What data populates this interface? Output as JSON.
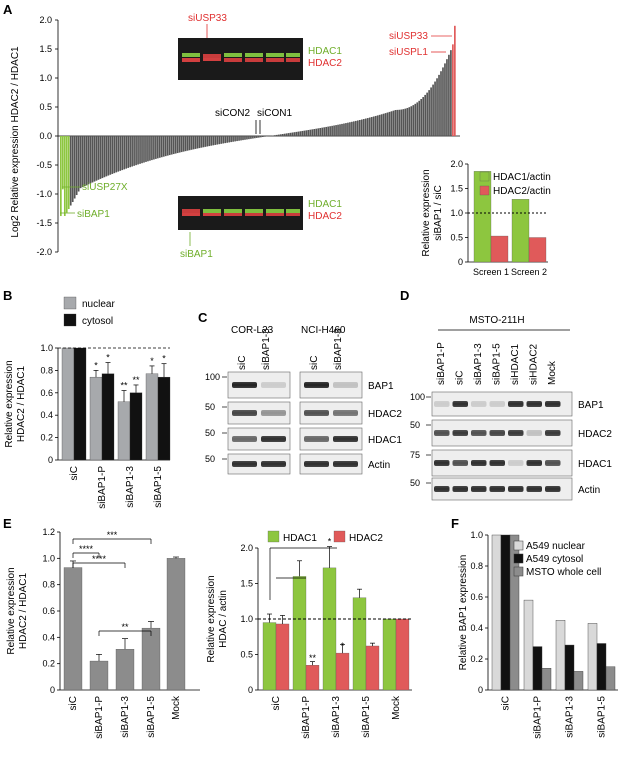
{
  "panels": {
    "A": "A",
    "B": "B",
    "C": "C",
    "D": "D",
    "E": "E",
    "F": "F"
  },
  "colors": {
    "green": "#8dc63f",
    "red": "#e05a5a",
    "grey": "#a7a9ac",
    "black": "#111111",
    "lightgrey": "#d9d9d9",
    "midgrey": "#8c8c8c"
  },
  "panelA": {
    "ylabel": "Log2 Relative expression HDAC2 / HDAC1",
    "yticks": [
      "2.0",
      "1.5",
      "1.0",
      "0.5",
      "0.0",
      "-0.5",
      "-1.0",
      "-1.5",
      "-2.0"
    ],
    "labels": {
      "siUSP33_blot": "siUSP33",
      "siUSP33": "siUSP33",
      "siUSPL1": "siUSPL1",
      "siCON2": "siCON2",
      "siCON1": "siCON1",
      "siUSP27X": "siUSP27X",
      "siBAP1": "siBAP1",
      "siBAP1_blot": "siBAP1",
      "hdac1_top": "HDAC1",
      "hdac2_top": "HDAC2",
      "hdac1_bot": "HDAC1",
      "hdac2_bot": "HDAC2"
    }
  },
  "chart_data": [
    {
      "id": "A_inset",
      "type": "bar",
      "ylabel": "Relative expression siBAP1 / siC",
      "categories": [
        "Screen 1",
        "Screen 2"
      ],
      "series": [
        {
          "name": "HDAC1/actin",
          "values": [
            1.85,
            1.28
          ]
        },
        {
          "name": "HDAC2/actin",
          "values": [
            0.53,
            0.5
          ]
        }
      ],
      "ylim": [
        0,
        2
      ],
      "yticks": [
        "0",
        "0.5",
        "1.0",
        "1.5",
        "2.0"
      ],
      "reference_line": 1.0
    },
    {
      "id": "B",
      "type": "bar",
      "ylabel": "Relative expression HDAC2 / HDAC1",
      "categories": [
        "siC",
        "siBAP1-P",
        "siBAP1-3",
        "siBAP1-5"
      ],
      "series": [
        {
          "name": "nuclear",
          "values": [
            1.0,
            0.74,
            0.52,
            0.77
          ]
        },
        {
          "name": "cytosol",
          "values": [
            1.0,
            0.77,
            0.6,
            0.74
          ]
        }
      ],
      "errors": [
        [
          0,
          0.06,
          0.1,
          0.07
        ],
        [
          0,
          0.1,
          0.07,
          0.12
        ]
      ],
      "significance": [
        [
          "",
          "*",
          "**",
          "*"
        ],
        [
          "",
          "*",
          "**",
          "*"
        ]
      ],
      "ylim": [
        0,
        1.0
      ],
      "yticks": [
        "0",
        "0.2",
        "0.4",
        "0.6",
        "0.8",
        "1.0"
      ],
      "reference_line": 1.0
    },
    {
      "id": "E_left",
      "type": "bar",
      "ylabel": "Relative expression HDAC2 / HDAC1",
      "categories": [
        "siC",
        "siBAP1-P",
        "siBAP1-3",
        "siBAP1-5",
        "Mock"
      ],
      "values": [
        0.93,
        0.22,
        0.31,
        0.47,
        1.0
      ],
      "errors": [
        0.05,
        0.05,
        0.08,
        0.05,
        0.01
      ],
      "significance_brackets": [
        "****",
        "****",
        "***",
        "**"
      ],
      "ylim": [
        0,
        1.2
      ],
      "yticks": [
        "0",
        "0.2",
        "0.4",
        "0.6",
        "0.8",
        "1.0",
        "1.2"
      ]
    },
    {
      "id": "E_right",
      "type": "bar",
      "ylabel": "Relative expression HDAC / actin",
      "categories": [
        "siC",
        "siBAP1-P",
        "siBAP1-3",
        "siBAP1-5",
        "Mock"
      ],
      "series": [
        {
          "name": "HDAC1",
          "values": [
            0.95,
            1.6,
            1.72,
            1.3,
            1.0
          ]
        },
        {
          "name": "HDAC2",
          "values": [
            0.93,
            0.35,
            0.52,
            0.62,
            1.0
          ]
        }
      ],
      "errors": [
        [
          0.12,
          0.22,
          0.3,
          0.12,
          0.0
        ],
        [
          0.12,
          0.05,
          0.12,
          0.04,
          0.0
        ]
      ],
      "significance": [
        [
          "",
          "",
          "*",
          "",
          ""
        ],
        [
          "",
          "**",
          "*",
          "",
          ""
        ]
      ],
      "ylim": [
        0,
        2.0
      ],
      "yticks": [
        "0",
        "0.5",
        "1.0",
        "1.5",
        "2.0"
      ],
      "reference_line": 1.0
    },
    {
      "id": "F",
      "type": "bar",
      "ylabel": "Relative BAP1 expression",
      "categories": [
        "siC",
        "siBAP1-P",
        "siBAP1-3",
        "siBAP1-5"
      ],
      "series": [
        {
          "name": "A549 nuclear",
          "values": [
            1.0,
            0.58,
            0.45,
            0.43
          ]
        },
        {
          "name": "A549 cytosol",
          "values": [
            1.0,
            0.28,
            0.29,
            0.3
          ]
        },
        {
          "name": "MSTO whole cell",
          "values": [
            1.0,
            0.14,
            0.12,
            0.15
          ]
        }
      ],
      "ylim": [
        0,
        1.0
      ],
      "yticks": [
        "0",
        "0.2",
        "0.4",
        "0.6",
        "0.8",
        "1.0"
      ]
    }
  ],
  "panelC": {
    "cells": [
      "COR-L23",
      "NCI-H460"
    ],
    "lanes": [
      "siC",
      "siBAP1-3"
    ],
    "bands": [
      "BAP1",
      "HDAC2",
      "HDAC1",
      "Actin"
    ],
    "mw": [
      "100",
      "50",
      "50",
      "50"
    ]
  },
  "panelD": {
    "title": "MSTO-211H",
    "lanes": [
      "siBAP1-P",
      "siC",
      "siBAP1-3",
      "siBAP1-5",
      "siHDAC1",
      "siHDAC2",
      "Mock"
    ],
    "bands": [
      "BAP1",
      "HDAC2",
      "HDAC1",
      "Actin"
    ],
    "mw": [
      "100",
      "50",
      "75",
      "50"
    ]
  }
}
